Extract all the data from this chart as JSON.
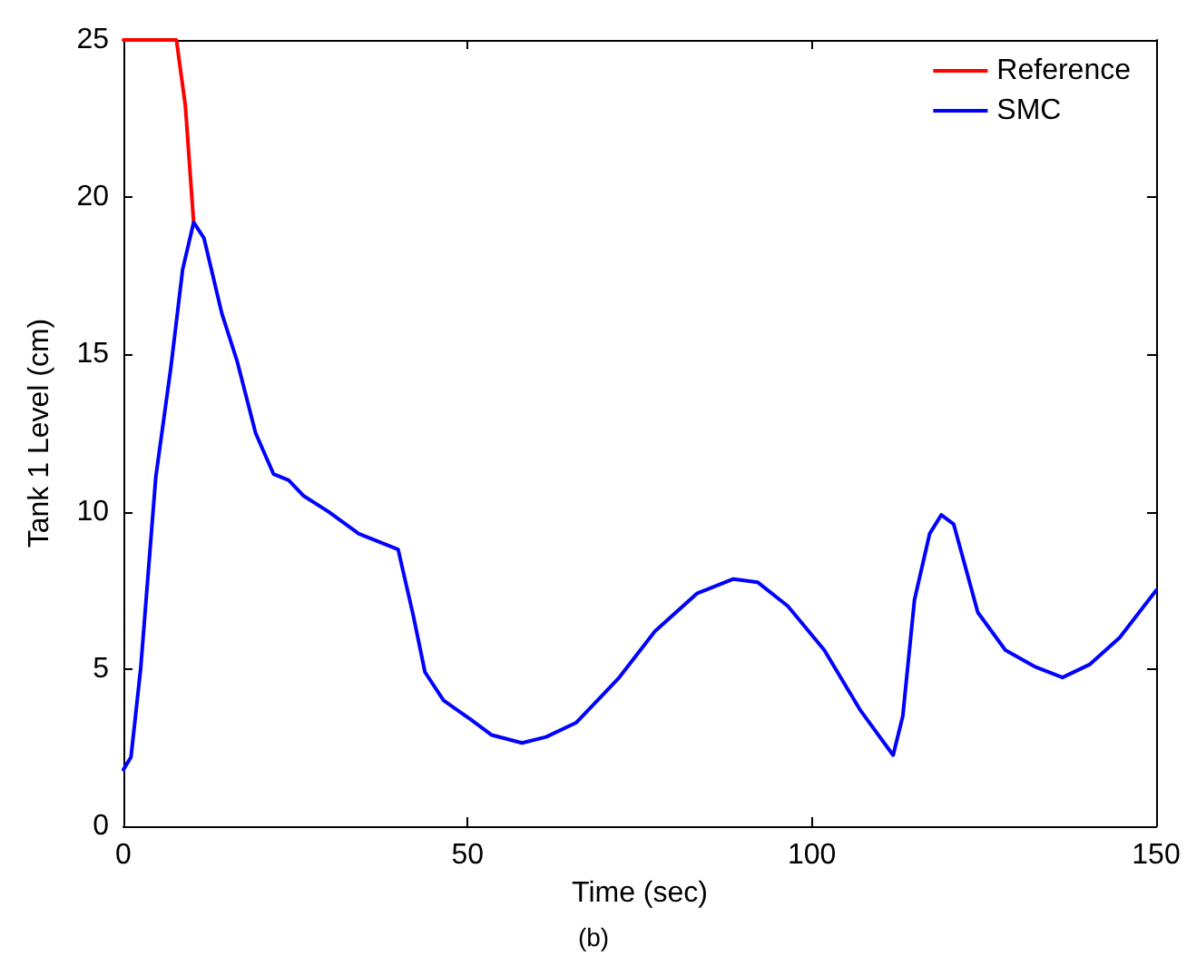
{
  "chart_data": {
    "type": "line",
    "xlabel": "Time (sec)",
    "ylabel": "Tank 1 Level (cm)",
    "annotations": [
      "(b)"
    ],
    "xlim": [
      0,
      150
    ],
    "xticks": [
      0,
      50,
      100,
      150
    ],
    "ylim": [
      0,
      25
    ],
    "yticks": [
      0,
      5,
      10,
      15,
      20,
      25
    ],
    "grid": false,
    "legend": "top right",
    "marker": "none",
    "line_style": "solid",
    "series": [
      {
        "name": "Reference",
        "color": "#ff0000",
        "x": [
          0,
          7.7,
          9.0,
          10.2
        ],
        "values": [
          25,
          25,
          22.9,
          19.2
        ]
      },
      {
        "name": "SMC",
        "color": "#0000ff",
        "x": [
          0,
          1.1,
          2.5,
          4.7,
          6.9,
          8.6,
          10.2,
          11.7,
          14.3,
          16.5,
          19.2,
          21.8,
          24.0,
          26.2,
          29.8,
          34.2,
          39.9,
          42.1,
          43.8,
          46.5,
          50.4,
          53.5,
          57.9,
          61.4,
          65.8,
          71.9,
          77.2,
          83.3,
          88.6,
          92.1,
          96.5,
          101.8,
          107.0,
          111.8,
          113.2,
          114.9,
          117.1,
          118.8,
          120.6,
          124.1,
          128.1,
          132.5,
          136.4,
          140.4,
          144.7,
          150
        ],
        "values": [
          1.8,
          2.2,
          5.0,
          11.1,
          14.6,
          17.7,
          19.2,
          18.7,
          16.3,
          14.8,
          12.5,
          11.2,
          11.0,
          10.5,
          10.0,
          9.3,
          8.8,
          6.7,
          4.9,
          4.0,
          3.4,
          2.9,
          2.65,
          2.84,
          3.3,
          4.7,
          6.2,
          7.4,
          7.86,
          7.76,
          7.0,
          5.6,
          3.7,
          2.26,
          3.5,
          7.2,
          9.3,
          9.9,
          9.6,
          6.8,
          5.6,
          5.06,
          4.73,
          5.15,
          6.0,
          7.5
        ]
      }
    ]
  }
}
